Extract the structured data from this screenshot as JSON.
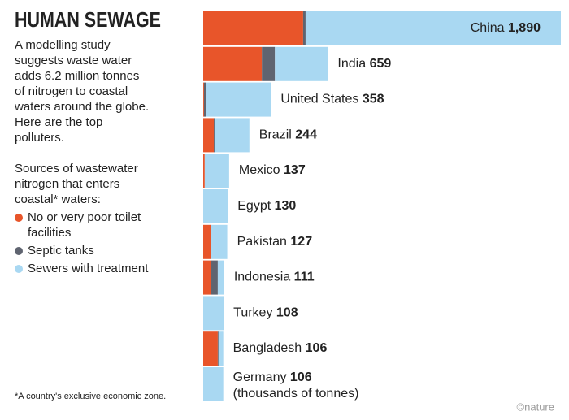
{
  "chart_data": {
    "type": "stacked-bar-horizontal",
    "title": "HUMAN SEWAGE",
    "subtitle_lines": [
      "A modelling study",
      "suggests waste water",
      "adds 6.2 million tonnes",
      "of nitrogen to coastal",
      "waters around the globe.",
      "Here are the top",
      "polluters."
    ],
    "legend_intro_lines": [
      "Sources of wastewater",
      "nitrogen that enters",
      "coastal* waters:"
    ],
    "categories": [
      "China",
      "India",
      "United States",
      "Brazil",
      "Mexico",
      "Egypt",
      "Pakistan",
      "Indonesia",
      "Turkey",
      "Bangladesh",
      "Germany"
    ],
    "totals": [
      1890,
      659,
      358,
      244,
      137,
      130,
      127,
      111,
      108,
      106,
      106
    ],
    "value_labels": [
      "1,890",
      "659",
      "358",
      "244",
      "137",
      "130",
      "127",
      "111",
      "108",
      "106",
      "106"
    ],
    "unit_note": "(thousands of tonnes)",
    "series": [
      {
        "name": "No or very poor toilet facilities",
        "color": "#e8552a",
        "values": [
          528,
          310,
          4,
          56,
          8,
          0,
          39,
          43,
          0,
          77,
          0
        ]
      },
      {
        "name": "Septic tanks",
        "color": "#5f6470",
        "values": [
          13,
          69,
          9,
          4,
          0,
          0,
          3,
          34,
          0,
          4,
          0
        ]
      },
      {
        "name": "Sewers with treatment",
        "color": "#a9d8f2",
        "values": [
          1349,
          280,
          345,
          184,
          129,
          130,
          85,
          34,
          108,
          25,
          106
        ]
      }
    ],
    "xlim": [
      0,
      1890
    ],
    "footnote": "*A country's exclusive economic zone.",
    "credit": "©nature"
  }
}
